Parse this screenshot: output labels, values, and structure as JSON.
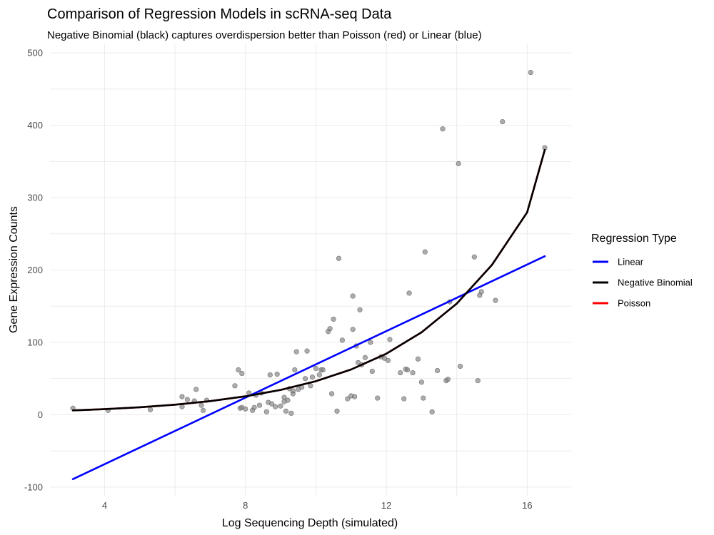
{
  "chart_data": {
    "type": "scatter",
    "title": "Comparison of Regression Models in scRNA-seq Data",
    "subtitle": "Negative Binomial (black) captures overdispersion better than Poisson (red) or Linear (blue)",
    "xlabel": "Log Sequencing Depth (simulated)",
    "ylabel": "Gene Expression Counts",
    "xlim": [
      2.45,
      17.25
    ],
    "ylim": [
      -112,
      512
    ],
    "x_ticks": [
      4,
      8,
      12,
      16
    ],
    "y_ticks": [
      -100,
      0,
      100,
      200,
      300,
      400,
      500
    ],
    "x_tick_labels": [
      "4",
      "8",
      "12",
      "16"
    ],
    "y_tick_labels": [
      "-100",
      "0",
      "100",
      "200",
      "300",
      "400",
      "500"
    ],
    "grid": true,
    "legend": {
      "title": "Regression Type",
      "position": "right",
      "entries": [
        {
          "label": "Linear",
          "color": "#0000ff"
        },
        {
          "label": "Negative Binomial",
          "color": "#000000"
        },
        {
          "label": "Poisson",
          "color": "#ff0000"
        }
      ]
    },
    "points": {
      "color": "#808080",
      "x": [
        3.1,
        4.1,
        5.3,
        6.2,
        6.2,
        6.35,
        6.55,
        6.6,
        6.75,
        6.8,
        6.9,
        7.7,
        7.8,
        7.85,
        7.9,
        7.9,
        8.0,
        8.1,
        8.2,
        8.25,
        8.3,
        8.4,
        8.45,
        8.6,
        8.65,
        8.7,
        8.75,
        8.85,
        8.9,
        9.0,
        9.1,
        9.1,
        9.15,
        9.2,
        9.25,
        9.3,
        9.35,
        9.35,
        9.4,
        9.45,
        9.5,
        9.6,
        9.7,
        9.75,
        9.85,
        9.9,
        10.0,
        10.1,
        10.15,
        10.2,
        10.35,
        10.4,
        10.45,
        10.5,
        10.6,
        10.65,
        10.75,
        10.9,
        11.0,
        11.05,
        11.05,
        11.1,
        11.15,
        11.2,
        11.25,
        11.3,
        11.4,
        11.55,
        11.6,
        11.75,
        11.85,
        11.95,
        12.05,
        12.1,
        12.4,
        12.5,
        12.55,
        12.6,
        12.65,
        12.75,
        12.9,
        13.0,
        13.05,
        13.1,
        13.3,
        13.45,
        13.6,
        13.7,
        13.75,
        13.8,
        14.05,
        14.1,
        14.5,
        14.6,
        14.65,
        14.7,
        15.1,
        15.3,
        16.1,
        16.5
      ],
      "y": [
        9,
        6,
        7,
        25,
        11,
        21,
        19,
        35,
        13,
        6,
        20,
        40,
        62,
        9,
        10,
        57,
        8,
        30,
        6,
        10,
        27,
        13,
        30,
        4,
        17,
        55,
        15,
        11,
        56,
        12,
        24,
        18,
        5,
        20,
        36,
        2,
        29,
        33,
        62,
        87,
        35,
        38,
        50,
        88,
        40,
        52,
        64,
        55,
        62,
        62,
        115,
        119,
        29,
        132,
        5,
        216,
        103,
        22,
        26,
        164,
        118,
        25,
        95,
        72,
        145,
        69,
        79,
        100,
        60,
        23,
        80,
        78,
        75,
        104,
        58,
        22,
        63,
        62,
        168,
        58,
        77,
        45,
        23,
        225,
        4,
        61,
        395,
        47,
        49,
        156,
        347,
        67,
        218,
        47,
        165,
        170,
        158,
        405,
        473,
        369
      ]
    },
    "series": [
      {
        "name": "Linear",
        "color": "#0000ff",
        "x": [
          3.1,
          16.5
        ],
        "y": [
          -89,
          219
        ]
      },
      {
        "name": "Negative Binomial",
        "color": "#000000",
        "x": [
          3.1,
          4,
          5,
          6,
          7,
          8,
          9,
          10,
          11,
          12,
          13,
          14,
          15,
          16,
          16.5
        ],
        "y": [
          6,
          7.7,
          10.3,
          13.9,
          18.8,
          25.4,
          34.3,
          46.3,
          62.5,
          84.3,
          113.8,
          153.6,
          207,
          279.7,
          366
        ]
      },
      {
        "name": "Poisson",
        "color": "#ff0000",
        "x": [
          3.1,
          4,
          5,
          6,
          7,
          8,
          9,
          10,
          11,
          12,
          13,
          14,
          15,
          16,
          16.5
        ],
        "y": [
          6,
          7.7,
          10.3,
          13.9,
          18.8,
          25.4,
          34.3,
          46.3,
          62.5,
          84.3,
          113.8,
          153.6,
          207,
          279.7,
          366
        ]
      }
    ]
  }
}
